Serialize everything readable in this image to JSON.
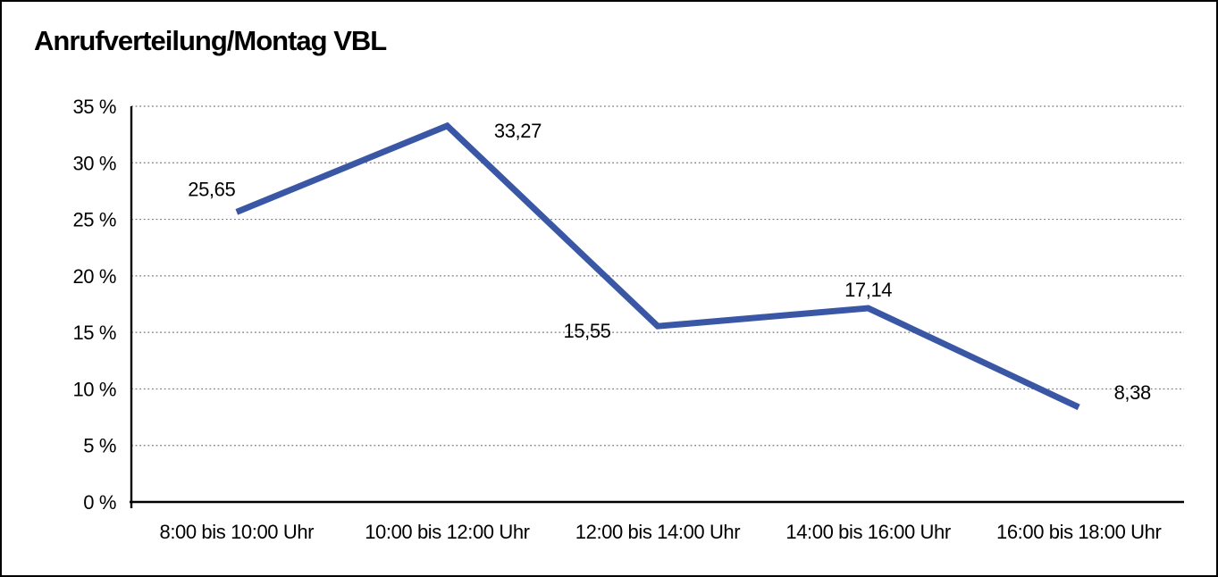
{
  "header": {
    "title": "Anrufverteilung/Montag VBL"
  },
  "chart_data": {
    "type": "line",
    "title": "Anrufverteilung/Montag VBL",
    "categories": [
      "8:00 bis 10:00 Uhr",
      "10:00 bis 12:00 Uhr",
      "12:00 bis 14:00 Uhr",
      "14:00 bis 16:00 Uhr",
      "16:00 bis 18:00 Uhr"
    ],
    "values": [
      25.65,
      33.27,
      15.55,
      17.14,
      8.38
    ],
    "value_labels": [
      "25,65",
      "33,27",
      "15,55",
      "17,14",
      "8,38"
    ],
    "xlabel": "",
    "ylabel": "",
    "ylim": [
      0,
      35
    ],
    "y_ticks": [
      {
        "value": 35,
        "label": "35 %"
      },
      {
        "value": 30,
        "label": "30 %"
      },
      {
        "value": 25,
        "label": "25 %"
      },
      {
        "value": 20,
        "label": "20 %"
      },
      {
        "value": 15,
        "label": "15 %"
      },
      {
        "value": 10,
        "label": "10 %"
      },
      {
        "value": 5,
        "label": "5 %"
      },
      {
        "value": 0,
        "label": "0 %"
      }
    ],
    "grid": "horizontal-dotted",
    "legend_position": "none",
    "colors": {
      "line": "#3A57A5",
      "axis": "#000000",
      "grid": "#777777",
      "text": "#000000",
      "background": "#FFFFFF",
      "frame_border": "#000000"
    }
  }
}
